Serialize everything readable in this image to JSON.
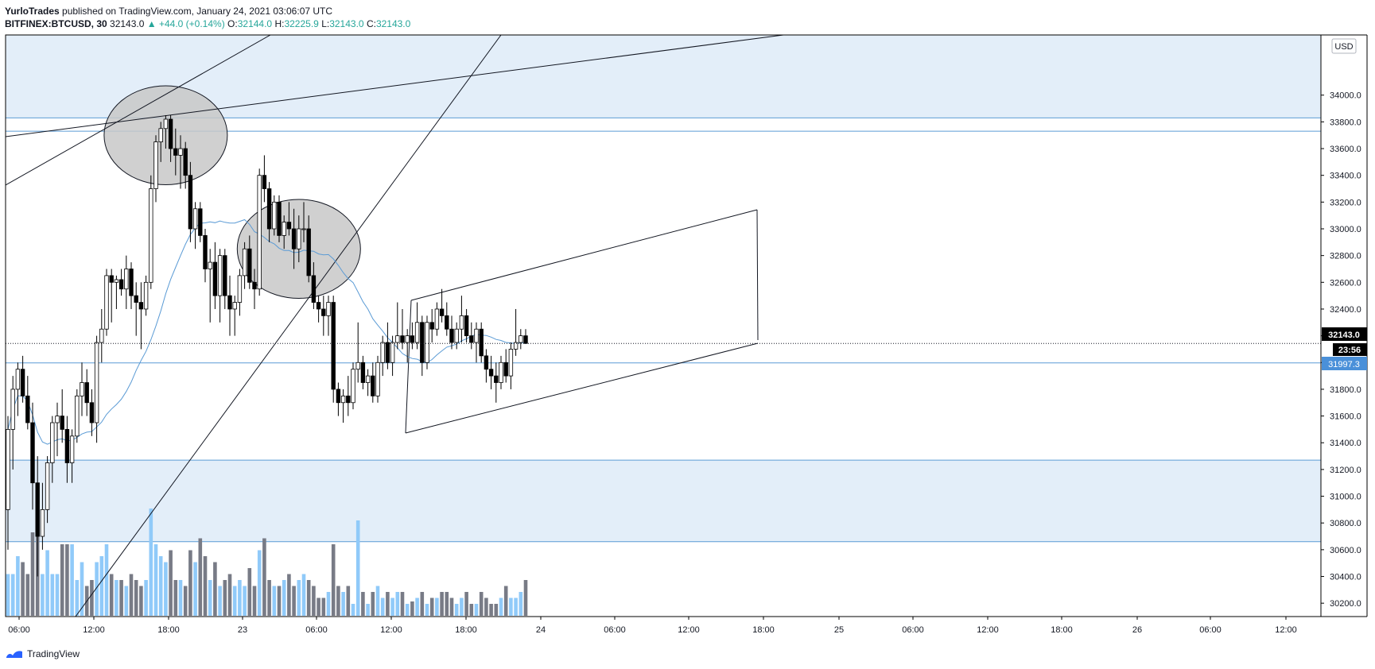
{
  "header": {
    "author": "YurloTrades",
    "published_text": " published on TradingView.com, January 24, 2021 03:06:07 UTC"
  },
  "ohlc": {
    "symbol": "BITFINEX:BTCUSD, 30",
    "last": "32143.0",
    "change": "▲ +44.0 (+0.14%)",
    "o_label": "O:",
    "o": "32144.0",
    "h_label": "H:",
    "h": "32225.9",
    "l_label": "L:",
    "l": "32143.0",
    "c_label": "C:",
    "c": "32143.0"
  },
  "currency_button": "USD",
  "price_badges": {
    "last_price": "32143.0",
    "countdown": "23:56",
    "level": "31997.3"
  },
  "footer": {
    "brand": "TradingView"
  },
  "colors": {
    "up_candle": "#ffffff",
    "down_candle": "#000000",
    "zone_fill": "#e3eef9",
    "level_line": "#5b9bd5",
    "ma_line": "#5b9bd5",
    "vol_up": "#90caf9",
    "vol_down": "#787b86",
    "ellipse_fill": "#c8c8c8"
  },
  "chart_data": {
    "type": "candlestick",
    "interval": "30",
    "y_axis": {
      "ticks": [
        "34000.0",
        "33800.0",
        "33600.0",
        "33400.0",
        "33200.0",
        "33000.0",
        "32800.0",
        "32600.0",
        "32400.0",
        "32200.0",
        "32000.0",
        "31800.0",
        "31600.0",
        "31400.0",
        "31200.0",
        "31000.0",
        "30800.0",
        "30600.0",
        "30400.0",
        "30200.0"
      ],
      "ylim": [
        30100,
        34450
      ]
    },
    "x_axis": {
      "ticks": [
        "06:00",
        "12:00",
        "18:00",
        "23",
        "06:00",
        "12:00",
        "18:00",
        "24",
        "06:00",
        "12:00",
        "18:00",
        "25",
        "06:00",
        "12:00",
        "18:00",
        "26",
        "06:00",
        "12:00"
      ]
    },
    "zones": [
      {
        "from": 33830,
        "to": 34450
      },
      {
        "from": 30660,
        "to": 31270
      }
    ],
    "levels": [
      33830,
      33730,
      31997.3,
      31270,
      30660
    ],
    "last_price": 32143.0,
    "candles": [
      {
        "o": 30900,
        "h": 31600,
        "l": 30600,
        "c": 31500
      },
      {
        "o": 31500,
        "h": 31900,
        "l": 31200,
        "c": 31800
      },
      {
        "o": 31800,
        "h": 32000,
        "l": 31600,
        "c": 31950
      },
      {
        "o": 31950,
        "h": 32050,
        "l": 31700,
        "c": 31750
      },
      {
        "o": 31750,
        "h": 31900,
        "l": 31500,
        "c": 31550
      },
      {
        "o": 31550,
        "h": 31700,
        "l": 30900,
        "c": 31100
      },
      {
        "o": 31100,
        "h": 31300,
        "l": 30400,
        "c": 30700
      },
      {
        "o": 30700,
        "h": 31100,
        "l": 30600,
        "c": 30900
      },
      {
        "o": 30900,
        "h": 31300,
        "l": 30800,
        "c": 31250
      },
      {
        "o": 31250,
        "h": 31600,
        "l": 31100,
        "c": 31550
      },
      {
        "o": 31550,
        "h": 31700,
        "l": 31300,
        "c": 31600
      },
      {
        "o": 31600,
        "h": 31800,
        "l": 31400,
        "c": 31500
      },
      {
        "o": 31500,
        "h": 31600,
        "l": 31100,
        "c": 31250
      },
      {
        "o": 31250,
        "h": 31500,
        "l": 31100,
        "c": 31450
      },
      {
        "o": 31450,
        "h": 31800,
        "l": 31400,
        "c": 31750
      },
      {
        "o": 31750,
        "h": 32000,
        "l": 31600,
        "c": 31850
      },
      {
        "o": 31850,
        "h": 31950,
        "l": 31600,
        "c": 31700
      },
      {
        "o": 31700,
        "h": 31800,
        "l": 31450,
        "c": 31550
      },
      {
        "o": 31550,
        "h": 32200,
        "l": 31400,
        "c": 32150
      },
      {
        "o": 32150,
        "h": 32400,
        "l": 32000,
        "c": 32250
      },
      {
        "o": 32250,
        "h": 32700,
        "l": 32200,
        "c": 32650
      },
      {
        "o": 32650,
        "h": 32700,
        "l": 32300,
        "c": 32600
      },
      {
        "o": 32600,
        "h": 32650,
        "l": 32400,
        "c": 32620
      },
      {
        "o": 32620,
        "h": 32700,
        "l": 32500,
        "c": 32550
      },
      {
        "o": 32550,
        "h": 32800,
        "l": 32400,
        "c": 32700
      },
      {
        "o": 32700,
        "h": 32750,
        "l": 32400,
        "c": 32500
      },
      {
        "o": 32500,
        "h": 32600,
        "l": 32200,
        "c": 32450
      },
      {
        "o": 32450,
        "h": 32600,
        "l": 32100,
        "c": 32400
      },
      {
        "o": 32400,
        "h": 32650,
        "l": 32350,
        "c": 32600
      },
      {
        "o": 32600,
        "h": 33400,
        "l": 32550,
        "c": 33300
      },
      {
        "o": 33300,
        "h": 33700,
        "l": 33200,
        "c": 33650
      },
      {
        "o": 33650,
        "h": 33800,
        "l": 33500,
        "c": 33750
      },
      {
        "o": 33750,
        "h": 33850,
        "l": 33600,
        "c": 33820
      },
      {
        "o": 33820,
        "h": 33850,
        "l": 33500,
        "c": 33600
      },
      {
        "o": 33600,
        "h": 33750,
        "l": 33400,
        "c": 33550
      },
      {
        "o": 33550,
        "h": 33700,
        "l": 33300,
        "c": 33600
      },
      {
        "o": 33600,
        "h": 33650,
        "l": 33300,
        "c": 33400
      },
      {
        "o": 33400,
        "h": 33500,
        "l": 32900,
        "c": 33000
      },
      {
        "o": 33000,
        "h": 33200,
        "l": 32850,
        "c": 33150
      },
      {
        "o": 33150,
        "h": 33200,
        "l": 32900,
        "c": 32950
      },
      {
        "o": 32950,
        "h": 33000,
        "l": 32600,
        "c": 32700
      },
      {
        "o": 32700,
        "h": 32850,
        "l": 32300,
        "c": 32750
      },
      {
        "o": 32750,
        "h": 32900,
        "l": 32400,
        "c": 32500
      },
      {
        "o": 32500,
        "h": 32850,
        "l": 32300,
        "c": 32800
      },
      {
        "o": 32800,
        "h": 32850,
        "l": 32400,
        "c": 32500
      },
      {
        "o": 32500,
        "h": 32650,
        "l": 32200,
        "c": 32400
      },
      {
        "o": 32400,
        "h": 32500,
        "l": 32200,
        "c": 32450
      },
      {
        "o": 32450,
        "h": 32700,
        "l": 32350,
        "c": 32650
      },
      {
        "o": 32650,
        "h": 32900,
        "l": 32550,
        "c": 32850
      },
      {
        "o": 32850,
        "h": 32950,
        "l": 32550,
        "c": 32600
      },
      {
        "o": 32600,
        "h": 32700,
        "l": 32400,
        "c": 32550
      },
      {
        "o": 32550,
        "h": 33450,
        "l": 32500,
        "c": 33400
      },
      {
        "o": 33400,
        "h": 33550,
        "l": 33200,
        "c": 33300
      },
      {
        "o": 33300,
        "h": 33350,
        "l": 32900,
        "c": 33000
      },
      {
        "o": 33000,
        "h": 33250,
        "l": 32950,
        "c": 33200
      },
      {
        "o": 33200,
        "h": 33250,
        "l": 32900,
        "c": 32950
      },
      {
        "o": 32950,
        "h": 33100,
        "l": 32850,
        "c": 33050
      },
      {
        "o": 33050,
        "h": 33200,
        "l": 32950,
        "c": 33000
      },
      {
        "o": 33000,
        "h": 33150,
        "l": 32700,
        "c": 32850
      },
      {
        "o": 32850,
        "h": 33100,
        "l": 32750,
        "c": 33000
      },
      {
        "o": 33000,
        "h": 33200,
        "l": 32900,
        "c": 33000
      },
      {
        "o": 33000,
        "h": 33100,
        "l": 32600,
        "c": 32650
      },
      {
        "o": 32650,
        "h": 32750,
        "l": 32400,
        "c": 32450
      },
      {
        "o": 32450,
        "h": 32500,
        "l": 32300,
        "c": 32400
      },
      {
        "o": 32400,
        "h": 32500,
        "l": 32200,
        "c": 32350
      },
      {
        "o": 32350,
        "h": 32500,
        "l": 32200,
        "c": 32450
      },
      {
        "o": 32450,
        "h": 32500,
        "l": 31700,
        "c": 31800
      },
      {
        "o": 31800,
        "h": 31850,
        "l": 31600,
        "c": 31700
      },
      {
        "o": 31700,
        "h": 31800,
        "l": 31550,
        "c": 31750
      },
      {
        "o": 31750,
        "h": 31900,
        "l": 31600,
        "c": 31700
      },
      {
        "o": 31700,
        "h": 32000,
        "l": 31650,
        "c": 31950
      },
      {
        "o": 31950,
        "h": 32300,
        "l": 31850,
        "c": 32000
      },
      {
        "o": 32000,
        "h": 32050,
        "l": 31800,
        "c": 31850
      },
      {
        "o": 31850,
        "h": 31950,
        "l": 31750,
        "c": 31900
      },
      {
        "o": 31900,
        "h": 32000,
        "l": 31700,
        "c": 31750
      },
      {
        "o": 31750,
        "h": 32050,
        "l": 31700,
        "c": 32000
      },
      {
        "o": 32000,
        "h": 32200,
        "l": 31900,
        "c": 32150
      },
      {
        "o": 32150,
        "h": 32300,
        "l": 31950,
        "c": 32000
      },
      {
        "o": 32000,
        "h": 32200,
        "l": 31900,
        "c": 32150
      },
      {
        "o": 32150,
        "h": 32450,
        "l": 32100,
        "c": 32200
      },
      {
        "o": 32200,
        "h": 32400,
        "l": 32100,
        "c": 32150
      },
      {
        "o": 32150,
        "h": 32250,
        "l": 32000,
        "c": 32200
      },
      {
        "o": 32200,
        "h": 32300,
        "l": 32100,
        "c": 32150
      },
      {
        "o": 32150,
        "h": 32450,
        "l": 32100,
        "c": 32300
      },
      {
        "o": 32300,
        "h": 32350,
        "l": 31900,
        "c": 32000
      },
      {
        "o": 32000,
        "h": 32350,
        "l": 31950,
        "c": 32300
      },
      {
        "o": 32300,
        "h": 32400,
        "l": 32150,
        "c": 32250
      },
      {
        "o": 32250,
        "h": 32450,
        "l": 32200,
        "c": 32400
      },
      {
        "o": 32400,
        "h": 32550,
        "l": 32300,
        "c": 32350
      },
      {
        "o": 32350,
        "h": 32450,
        "l": 32200,
        "c": 32250
      },
      {
        "o": 32250,
        "h": 32350,
        "l": 32100,
        "c": 32150
      },
      {
        "o": 32150,
        "h": 32300,
        "l": 32100,
        "c": 32250
      },
      {
        "o": 32250,
        "h": 32500,
        "l": 32150,
        "c": 32350
      },
      {
        "o": 32350,
        "h": 32400,
        "l": 32150,
        "c": 32200
      },
      {
        "o": 32200,
        "h": 32300,
        "l": 32100,
        "c": 32150
      },
      {
        "o": 32150,
        "h": 32300,
        "l": 32000,
        "c": 32250
      },
      {
        "o": 32250,
        "h": 32300,
        "l": 32000,
        "c": 32050
      },
      {
        "o": 32050,
        "h": 32100,
        "l": 31850,
        "c": 31950
      },
      {
        "o": 31950,
        "h": 32050,
        "l": 31800,
        "c": 31900
      },
      {
        "o": 31900,
        "h": 32000,
        "l": 31700,
        "c": 31850
      },
      {
        "o": 31850,
        "h": 32050,
        "l": 31800,
        "c": 32000
      },
      {
        "o": 32000,
        "h": 32100,
        "l": 31850,
        "c": 31900
      },
      {
        "o": 31900,
        "h": 32150,
        "l": 31800,
        "c": 32100
      },
      {
        "o": 32100,
        "h": 32400,
        "l": 32050,
        "c": 32150
      },
      {
        "o": 32150,
        "h": 32250,
        "l": 32100,
        "c": 32200
      },
      {
        "o": 32200,
        "h": 32250,
        "l": 32140,
        "c": 32143
      }
    ],
    "volume": [
      0.35,
      0.35,
      0.5,
      0.45,
      0.35,
      0.7,
      0.8,
      0.35,
      0.55,
      0.35,
      0.35,
      0.6,
      0.6,
      0.6,
      0.3,
      0.45,
      0.25,
      0.3,
      0.45,
      0.5,
      0.6,
      0.35,
      0.3,
      0.3,
      0.25,
      0.35,
      0.3,
      0.25,
      0.3,
      0.9,
      0.6,
      0.5,
      0.45,
      0.55,
      0.3,
      0.3,
      0.25,
      0.55,
      0.45,
      0.65,
      0.5,
      0.3,
      0.45,
      0.25,
      0.3,
      0.35,
      0.25,
      0.3,
      0.25,
      0.4,
      0.25,
      0.55,
      0.65,
      0.3,
      0.25,
      0.25,
      0.3,
      0.35,
      0.25,
      0.3,
      0.35,
      0.3,
      0.25,
      0.15,
      0.15,
      0.2,
      0.6,
      0.25,
      0.2,
      0.25,
      0.1,
      0.8,
      0.2,
      0.1,
      0.2,
      0.25,
      0.15,
      0.2,
      0.15,
      0.2,
      0.2,
      0.1,
      0.12,
      0.15,
      0.2,
      0.1,
      0.15,
      0.15,
      0.2,
      0.2,
      0.15,
      0.1,
      0.15,
      0.2,
      0.1,
      0.1,
      0.2,
      0.15,
      0.1,
      0.1,
      0.15,
      0.25,
      0.15,
      0.15,
      0.2,
      0.3,
      0.1,
      0.03
    ],
    "annotations": {
      "ellipses": [
        {
          "cx_index": 32,
          "cy": 33700,
          "rx_bars": 12.5,
          "ry_price": 370
        },
        {
          "cx_index": 59,
          "cy": 32850,
          "rx_bars": 12.5,
          "ry_price": 370
        }
      ]
    }
  }
}
